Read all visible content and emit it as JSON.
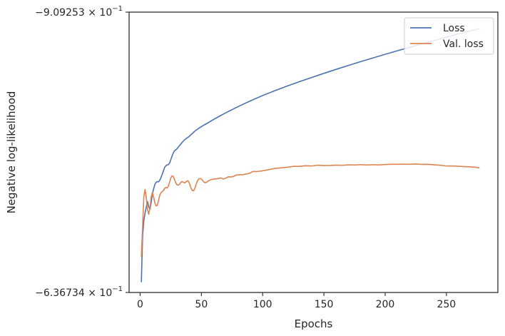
{
  "chart_data": {
    "type": "line",
    "xlabel": "Epochs",
    "ylabel": "Negative log-likelihood",
    "x_ticks": [
      0,
      50,
      100,
      150,
      200,
      250
    ],
    "xlim": [
      -9,
      292
    ],
    "y_scale": "log",
    "y_ticks": [
      {
        "value": -0.636734,
        "mantissa": "−6.36734",
        "exponent": "−1"
      },
      {
        "value": -0.909253,
        "mantissa": "−9.09253",
        "exponent": "−1"
      }
    ],
    "ylim": [
      -0.909253,
      -0.636734
    ],
    "legend": {
      "location": "upper right"
    },
    "series": [
      {
        "name": "Loss",
        "color": "#4c72b0",
        "points": [
          [
            1,
            -0.6452
          ],
          [
            2,
            -0.6835
          ],
          [
            3,
            -0.6975
          ],
          [
            4,
            -0.7043
          ],
          [
            5,
            -0.7096
          ],
          [
            6,
            -0.7148
          ],
          [
            7,
            -0.7102
          ],
          [
            8,
            -0.7075
          ],
          [
            9,
            -0.7138
          ],
          [
            10,
            -0.7218
          ],
          [
            11,
            -0.7262
          ],
          [
            12,
            -0.7303
          ],
          [
            13,
            -0.7324
          ],
          [
            14,
            -0.733
          ],
          [
            15,
            -0.7329
          ],
          [
            16,
            -0.7343
          ],
          [
            17,
            -0.7368
          ],
          [
            18,
            -0.7398
          ],
          [
            19,
            -0.7432
          ],
          [
            20,
            -0.7464
          ],
          [
            21,
            -0.748
          ],
          [
            22,
            -0.7488
          ],
          [
            23,
            -0.749
          ],
          [
            24,
            -0.7505
          ],
          [
            25,
            -0.7536
          ],
          [
            26,
            -0.7571
          ],
          [
            27,
            -0.7601
          ],
          [
            28,
            -0.7622
          ],
          [
            29,
            -0.7632
          ],
          [
            30,
            -0.7643
          ],
          [
            32,
            -0.7671
          ],
          [
            34,
            -0.7701
          ],
          [
            36,
            -0.7728
          ],
          [
            38,
            -0.7747
          ],
          [
            40,
            -0.7763
          ],
          [
            42,
            -0.7787
          ],
          [
            44,
            -0.7809
          ],
          [
            46,
            -0.7829
          ],
          [
            48,
            -0.7846
          ],
          [
            50,
            -0.7862
          ],
          [
            55,
            -0.7897
          ],
          [
            60,
            -0.7933
          ],
          [
            65,
            -0.7968
          ],
          [
            70,
            -0.8001
          ],
          [
            75,
            -0.8033
          ],
          [
            80,
            -0.8064
          ],
          [
            90,
            -0.8123
          ],
          [
            100,
            -0.8178
          ],
          [
            110,
            -0.8229
          ],
          [
            120,
            -0.8277
          ],
          [
            130,
            -0.8323
          ],
          [
            140,
            -0.8368
          ],
          [
            150,
            -0.8412
          ],
          [
            160,
            -0.8455
          ],
          [
            170,
            -0.8497
          ],
          [
            180,
            -0.8538
          ],
          [
            190,
            -0.8578
          ],
          [
            200,
            -0.8618
          ],
          [
            210,
            -0.8657
          ],
          [
            220,
            -0.8695
          ],
          [
            230,
            -0.8733
          ],
          [
            240,
            -0.8771
          ],
          [
            250,
            -0.8808
          ],
          [
            260,
            -0.8845
          ],
          [
            270,
            -0.888
          ],
          [
            277,
            -0.8905
          ]
        ]
      },
      {
        "name": "Val. loss",
        "color": "#dd8452",
        "points": [
          [
            1,
            -0.6665
          ],
          [
            2,
            -0.6915
          ],
          [
            3,
            -0.7187
          ],
          [
            4,
            -0.7258
          ],
          [
            5,
            -0.7185
          ],
          [
            6,
            -0.7076
          ],
          [
            7,
            -0.7032
          ],
          [
            8,
            -0.7088
          ],
          [
            9,
            -0.7189
          ],
          [
            10,
            -0.7231
          ],
          [
            11,
            -0.719
          ],
          [
            12,
            -0.7134
          ],
          [
            13,
            -0.7108
          ],
          [
            14,
            -0.7113
          ],
          [
            15,
            -0.7155
          ],
          [
            16,
            -0.7205
          ],
          [
            17,
            -0.7227
          ],
          [
            18,
            -0.7237
          ],
          [
            19,
            -0.7249
          ],
          [
            20,
            -0.7269
          ],
          [
            21,
            -0.7277
          ],
          [
            22,
            -0.7271
          ],
          [
            23,
            -0.7287
          ],
          [
            24,
            -0.7325
          ],
          [
            25,
            -0.7364
          ],
          [
            26,
            -0.7385
          ],
          [
            27,
            -0.7379
          ],
          [
            28,
            -0.7352
          ],
          [
            29,
            -0.7321
          ],
          [
            30,
            -0.7302
          ],
          [
            31,
            -0.7297
          ],
          [
            32,
            -0.7304
          ],
          [
            33,
            -0.732
          ],
          [
            34,
            -0.7331
          ],
          [
            35,
            -0.7328
          ],
          [
            36,
            -0.732
          ],
          [
            37,
            -0.7322
          ],
          [
            38,
            -0.7335
          ],
          [
            39,
            -0.7339
          ],
          [
            40,
            -0.7321
          ],
          [
            41,
            -0.7288
          ],
          [
            42,
            -0.7258
          ],
          [
            43,
            -0.7245
          ],
          [
            44,
            -0.7252
          ],
          [
            45,
            -0.728
          ],
          [
            46,
            -0.7315
          ],
          [
            47,
            -0.7343
          ],
          [
            48,
            -0.7357
          ],
          [
            49,
            -0.736
          ],
          [
            50,
            -0.7355
          ],
          [
            51,
            -0.7341
          ],
          [
            52,
            -0.7327
          ],
          [
            53,
            -0.7321
          ],
          [
            54,
            -0.7324
          ],
          [
            56,
            -0.7339
          ],
          [
            58,
            -0.735
          ],
          [
            60,
            -0.7354
          ],
          [
            62,
            -0.7356
          ],
          [
            64,
            -0.7361
          ],
          [
            66,
            -0.7365
          ],
          [
            68,
            -0.7355
          ],
          [
            70,
            -0.7363
          ],
          [
            72,
            -0.7376
          ],
          [
            74,
            -0.7374
          ],
          [
            76,
            -0.7378
          ],
          [
            78,
            -0.739
          ],
          [
            80,
            -0.7394
          ],
          [
            84,
            -0.7396
          ],
          [
            88,
            -0.7405
          ],
          [
            90,
            -0.7413
          ],
          [
            92,
            -0.7426
          ],
          [
            95,
            -0.7425
          ],
          [
            100,
            -0.7432
          ],
          [
            105,
            -0.7443
          ],
          [
            110,
            -0.7455
          ],
          [
            115,
            -0.746
          ],
          [
            120,
            -0.7466
          ],
          [
            125,
            -0.7474
          ],
          [
            130,
            -0.7474
          ],
          [
            135,
            -0.748
          ],
          [
            140,
            -0.7478
          ],
          [
            145,
            -0.7485
          ],
          [
            150,
            -0.7482
          ],
          [
            155,
            -0.7483
          ],
          [
            160,
            -0.7486
          ],
          [
            165,
            -0.7484
          ],
          [
            170,
            -0.7489
          ],
          [
            175,
            -0.7487
          ],
          [
            180,
            -0.749
          ],
          [
            185,
            -0.7487
          ],
          [
            190,
            -0.749
          ],
          [
            195,
            -0.7488
          ],
          [
            200,
            -0.7492
          ],
          [
            205,
            -0.7494
          ],
          [
            210,
            -0.7494
          ],
          [
            215,
            -0.7496
          ],
          [
            220,
            -0.7494
          ],
          [
            225,
            -0.7497
          ],
          [
            230,
            -0.7493
          ],
          [
            235,
            -0.7494
          ],
          [
            240,
            -0.7489
          ],
          [
            245,
            -0.7485
          ],
          [
            250,
            -0.7478
          ],
          [
            255,
            -0.7478
          ],
          [
            260,
            -0.7475
          ],
          [
            265,
            -0.7472
          ],
          [
            270,
            -0.7469
          ],
          [
            275,
            -0.7464
          ],
          [
            277,
            -0.7459
          ]
        ]
      }
    ]
  }
}
